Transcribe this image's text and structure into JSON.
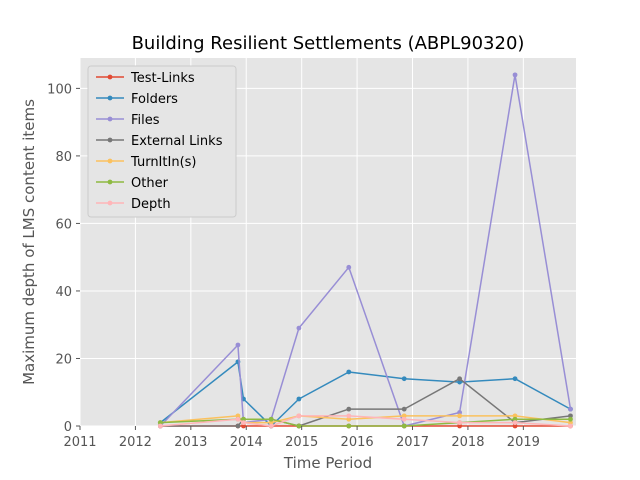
{
  "chart_data": {
    "type": "line",
    "title": "Building Resilient Settlements (ABPL90320)",
    "xlabel": "Time Period",
    "ylabel": "Maximum depth of LMS content items",
    "xlim": [
      2011.0,
      2019.95
    ],
    "ylim": [
      0,
      109
    ],
    "xticks": [
      2011,
      2012,
      2013,
      2014,
      2015,
      2016,
      2017,
      2018,
      2019
    ],
    "yticks": [
      0,
      20,
      40,
      60,
      80,
      100
    ],
    "grid": true,
    "legend_position": "top-left",
    "x": [
      2012.45,
      2013.85,
      2013.95,
      2014.45,
      2014.95,
      2015.85,
      2016.85,
      2017.85,
      2018.85,
      2019.85
    ],
    "series": [
      {
        "name": "Test-Links",
        "color": "#e24a33",
        "values": [
          0,
          0,
          0,
          0,
          0,
          0,
          0,
          0,
          0,
          0
        ]
      },
      {
        "name": "Folders",
        "color": "#348abd",
        "values": [
          1,
          19,
          8,
          0,
          8,
          16,
          14,
          13,
          14,
          5
        ]
      },
      {
        "name": "Files",
        "color": "#988ed5",
        "values": [
          0,
          24,
          1,
          2,
          29,
          47,
          0,
          4,
          104,
          5
        ]
      },
      {
        "name": "External Links",
        "color": "#777777",
        "values": [
          0,
          0,
          2,
          2,
          0,
          5,
          5,
          14,
          1,
          3
        ]
      },
      {
        "name": "TurnItIn(s)",
        "color": "#fbc15e",
        "values": [
          1,
          3,
          1,
          1,
          3,
          2,
          3,
          3,
          3,
          1
        ]
      },
      {
        "name": "Other",
        "color": "#8eba42",
        "values": [
          1,
          2,
          2,
          2,
          0,
          0,
          0,
          1,
          2,
          2
        ]
      },
      {
        "name": "Depth",
        "color": "#ffb5b8",
        "values": [
          0,
          2,
          1,
          0,
          3,
          3,
          2,
          1,
          1,
          0
        ]
      }
    ]
  }
}
